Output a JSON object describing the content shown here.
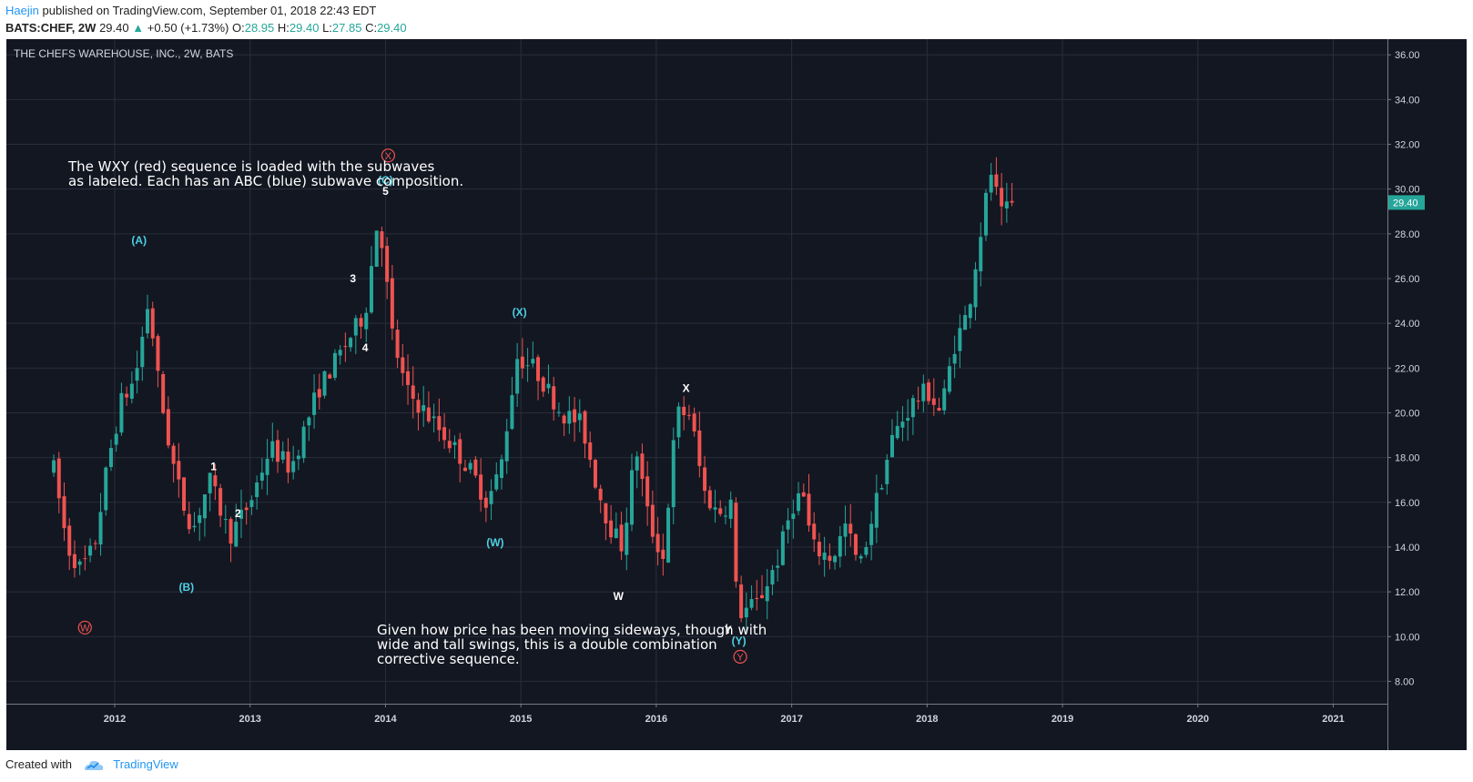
{
  "header": {
    "author": "Haejin",
    "published_text": "published on TradingView.com, September 01, 2018 22:43 EDT",
    "symbol": "BATS:CHEF, 2W",
    "last": "29.40",
    "change": "+0.50 (+1.73%)",
    "o_label": "O:",
    "o_value": "28.95",
    "h_label": "H:",
    "h_value": "29.40",
    "l_label": "L:",
    "l_value": "27.85",
    "c_label": "C:",
    "c_value": "29.40"
  },
  "footer": {
    "created_with": "Created with",
    "brand": "TradingView"
  },
  "colors": {
    "up": "#26a69a",
    "down": "#ef5350",
    "background": "#131722",
    "grid": "#2a2e39",
    "blue_label": "#4dd0e1",
    "red_label": "#ef5350"
  },
  "chart_data": {
    "type": "candlestick",
    "title": "THE CHEFS WAREHOUSE, INC., 2W, BATS",
    "x_range": [
      2011.2,
      2021.4
    ],
    "ylim": [
      7,
      36.7
    ],
    "yticks": [
      8,
      10,
      12,
      14,
      16,
      18,
      20,
      22,
      24,
      26,
      28,
      30,
      32,
      34,
      36
    ],
    "ytick_labels": [
      "8.00",
      "10.00",
      "12.00",
      "14.00",
      "16.00",
      "18.00",
      "20.00",
      "22.00",
      "24.00",
      "26.00",
      "28.00",
      "30.00",
      "32.00",
      "34.00",
      "36.00"
    ],
    "xticks": [
      2012,
      2013,
      2014,
      2015,
      2016,
      2017,
      2018,
      2019,
      2020,
      2021
    ],
    "xtick_labels": [
      "2012",
      "2013",
      "2014",
      "2015",
      "2016",
      "2017",
      "2018",
      "2019",
      "2020",
      "2021"
    ],
    "grid": true,
    "last_price": 29.4,
    "last_price_label": "29.40",
    "anchors": [
      [
        2011.55,
        17.5
      ],
      [
        2011.65,
        14.0
      ],
      [
        2011.75,
        13.0
      ],
      [
        2011.85,
        14.0
      ],
      [
        2011.95,
        17.8
      ],
      [
        2012.05,
        20.5
      ],
      [
        2012.15,
        21.5
      ],
      [
        2012.25,
        25.0
      ],
      [
        2012.33,
        21.0
      ],
      [
        2012.42,
        18.0
      ],
      [
        2012.5,
        16.0
      ],
      [
        2012.58,
        14.8
      ],
      [
        2012.7,
        17.0
      ],
      [
        2012.85,
        14.5
      ],
      [
        2013.0,
        16.0
      ],
      [
        2013.15,
        18.5
      ],
      [
        2013.3,
        17.5
      ],
      [
        2013.5,
        21.0
      ],
      [
        2013.7,
        23.0
      ],
      [
        2013.85,
        24.5
      ],
      [
        2013.95,
        29.0
      ],
      [
        2014.05,
        23.5
      ],
      [
        2014.15,
        21.0
      ],
      [
        2014.3,
        20.0
      ],
      [
        2014.5,
        18.5
      ],
      [
        2014.65,
        17.2
      ],
      [
        2014.75,
        16.0
      ],
      [
        2014.85,
        17.5
      ],
      [
        2014.97,
        22.5
      ],
      [
        2015.1,
        22.0
      ],
      [
        2015.3,
        20.0
      ],
      [
        2015.45,
        19.5
      ],
      [
        2015.55,
        17.0
      ],
      [
        2015.65,
        15.0
      ],
      [
        2015.75,
        14.0
      ],
      [
        2015.85,
        18.5
      ],
      [
        2015.95,
        15.0
      ],
      [
        2016.05,
        13.5
      ],
      [
        2016.15,
        20.0
      ],
      [
        2016.25,
        20.0
      ],
      [
        2016.35,
        16.5
      ],
      [
        2016.45,
        15.5
      ],
      [
        2016.55,
        16.0
      ],
      [
        2016.6,
        11.0
      ],
      [
        2016.75,
        11.5
      ],
      [
        2016.9,
        13.5
      ],
      [
        2017.0,
        15.8
      ],
      [
        2017.08,
        16.5
      ],
      [
        2017.15,
        14.0
      ],
      [
        2017.3,
        13.5
      ],
      [
        2017.4,
        15.0
      ],
      [
        2017.5,
        13.0
      ],
      [
        2017.6,
        15.5
      ],
      [
        2017.75,
        19.0
      ],
      [
        2017.9,
        20.5
      ],
      [
        2018.0,
        21.0
      ],
      [
        2018.1,
        20.0
      ],
      [
        2018.2,
        23.0
      ],
      [
        2018.3,
        24.5
      ],
      [
        2018.38,
        27.5
      ],
      [
        2018.47,
        30.8
      ],
      [
        2018.55,
        28.8
      ],
      [
        2018.65,
        29.4
      ]
    ],
    "annotations": [
      {
        "text": "(A)",
        "x": 2012.18,
        "y": 27.7,
        "color": "blue"
      },
      {
        "text": "(B)",
        "x": 2012.53,
        "y": 12.2,
        "color": "blue"
      },
      {
        "text": "(C)",
        "x": 2014.0,
        "y": 30.4,
        "color": "blue"
      },
      {
        "text": "5",
        "x": 2014.0,
        "y": 29.9,
        "color": "white"
      },
      {
        "text": "1",
        "x": 2012.73,
        "y": 17.6,
        "color": "white"
      },
      {
        "text": "2",
        "x": 2012.91,
        "y": 15.5,
        "color": "white"
      },
      {
        "text": "3",
        "x": 2013.76,
        "y": 26.0,
        "color": "white"
      },
      {
        "text": "4",
        "x": 2013.85,
        "y": 22.9,
        "color": "white"
      },
      {
        "text": "(X)",
        "x": 2014.99,
        "y": 24.5,
        "color": "blue"
      },
      {
        "text": "(W)",
        "x": 2014.81,
        "y": 14.2,
        "color": "blue"
      },
      {
        "text": "W",
        "x": 2015.72,
        "y": 11.8,
        "color": "white"
      },
      {
        "text": "X",
        "x": 2016.22,
        "y": 21.1,
        "color": "white"
      },
      {
        "text": "Y",
        "x": 2016.53,
        "y": 10.3,
        "color": "white"
      },
      {
        "text": "(Y)",
        "x": 2016.61,
        "y": 9.8,
        "color": "blue"
      }
    ],
    "circled_annotations": [
      {
        "text": "W",
        "x": 2011.78,
        "y": 10.4,
        "color": "red"
      },
      {
        "text": "X",
        "x": 2014.02,
        "y": 31.5,
        "color": "red"
      },
      {
        "text": "Y",
        "x": 2016.62,
        "y": 9.1,
        "color": "red"
      }
    ],
    "notes": [
      {
        "lines": [
          "The WXY (red) sequence is loaded with the subwaves",
          "as labeled. Each has an ABC (blue) subwave composition."
        ],
        "x": 2011.2,
        "y": 31.0
      },
      {
        "lines": [
          "Given how price has been moving sideways, though with",
          "wide and tall swings, this is a double combination",
          "corrective sequence."
        ],
        "x": 2011.2,
        "y": 10.6
      }
    ]
  }
}
